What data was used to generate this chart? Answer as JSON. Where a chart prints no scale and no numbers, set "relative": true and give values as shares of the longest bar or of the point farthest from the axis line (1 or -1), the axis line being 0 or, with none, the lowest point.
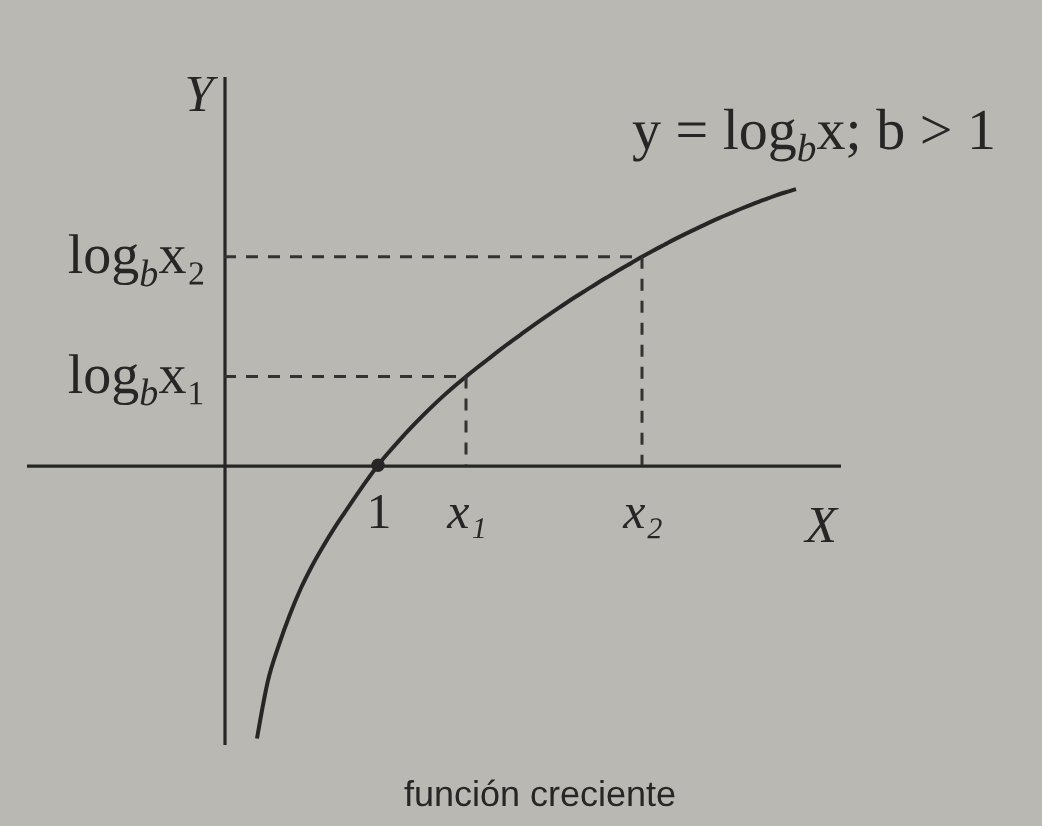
{
  "chart_data": {
    "type": "line",
    "xlabel": "X",
    "ylabel": "Y",
    "relative": true,
    "categories": [
      null,
      null,
      null,
      null,
      null,
      null,
      null,
      null,
      null,
      null,
      null,
      null,
      null,
      null,
      "1",
      null,
      null,
      null,
      null,
      null,
      null,
      null,
      "x₁",
      null,
      null,
      null,
      null,
      null,
      null,
      null,
      null,
      null,
      null,
      null,
      null,
      null,
      null,
      null,
      "x₂",
      null,
      null,
      null,
      null,
      null,
      null,
      null,
      null,
      null,
      null,
      null,
      null,
      null,
      null
    ],
    "series": [
      {
        "name": "y = log$_{b}$x; b > 1",
        "color": "#262626",
        "values": [
          null,
          null,
          null,
          -0.99,
          -0.78,
          -0.65,
          -0.54,
          -0.445,
          -0.365,
          -0.295,
          -0.23,
          -0.17,
          -0.111,
          -0.054,
          0,
          0.048,
          0.093,
          0.136,
          0.177,
          0.216,
          0.253,
          0.288,
          0.321,
          0.353,
          0.384,
          0.415,
          0.445,
          0.474,
          0.503,
          0.531,
          0.558,
          0.585,
          0.611,
          0.636,
          0.661,
          0.685,
          0.709,
          0.732,
          0.755,
          0.777,
          0.798,
          0.819,
          0.839,
          0.858,
          0.877,
          0.895,
          0.912,
          0.929,
          0.945,
          0.96,
          0.975,
          0.988,
          1.0
        ]
      },
      {
        "name": "log$_{b}$x₁",
        "color": "#333333",
        "line_style": "dashed",
        "values": [
          0.321,
          0.321,
          0.321,
          0.321,
          0.321,
          0.321,
          0.321,
          0.321,
          0.321,
          0.321,
          0.321,
          0.321,
          0.321,
          0.321,
          0.321,
          0.321,
          0.321,
          0.321,
          0.321,
          0.321,
          0.321,
          0.321,
          0.321,
          null,
          null,
          null,
          null,
          null,
          null,
          null,
          null,
          null,
          null,
          null,
          null,
          null,
          null,
          null,
          null,
          null,
          null,
          null,
          null,
          null,
          null,
          null,
          null,
          null,
          null,
          null,
          null,
          null,
          null
        ]
      },
      {
        "color": "#333333",
        "line_style": "dashed",
        "x": [
          "x₁",
          "x₁"
        ],
        "values": [
          0.321,
          0
        ]
      },
      {
        "name": "log$_{b}$x₂",
        "color": "#333333",
        "line_style": "dashed",
        "values": [
          0.755,
          0.755,
          0.755,
          0.755,
          0.755,
          0.755,
          0.755,
          0.755,
          0.755,
          0.755,
          0.755,
          0.755,
          0.755,
          0.755,
          0.755,
          0.755,
          0.755,
          0.755,
          0.755,
          0.755,
          0.755,
          0.755,
          0.755,
          0.755,
          0.755,
          0.755,
          0.755,
          0.755,
          0.755,
          0.755,
          0.755,
          0.755,
          0.755,
          0.755,
          0.755,
          0.755,
          0.755,
          0.755,
          0.755,
          null,
          null,
          null,
          null,
          null,
          null,
          null,
          null,
          null,
          null,
          null,
          null,
          null,
          null
        ]
      },
      {
        "color": "#333333",
        "line_style": "dashed",
        "x": [
          "x₂",
          "x₂"
        ],
        "values": [
          0.755,
          0
        ]
      },
      {
        "type": "scatter",
        "marker": "circle",
        "color": "#262626",
        "x": [
          "1"
        ],
        "values": [
          0
        ]
      }
    ],
    "annotations": [
      "función creciente"
    ]
  }
}
